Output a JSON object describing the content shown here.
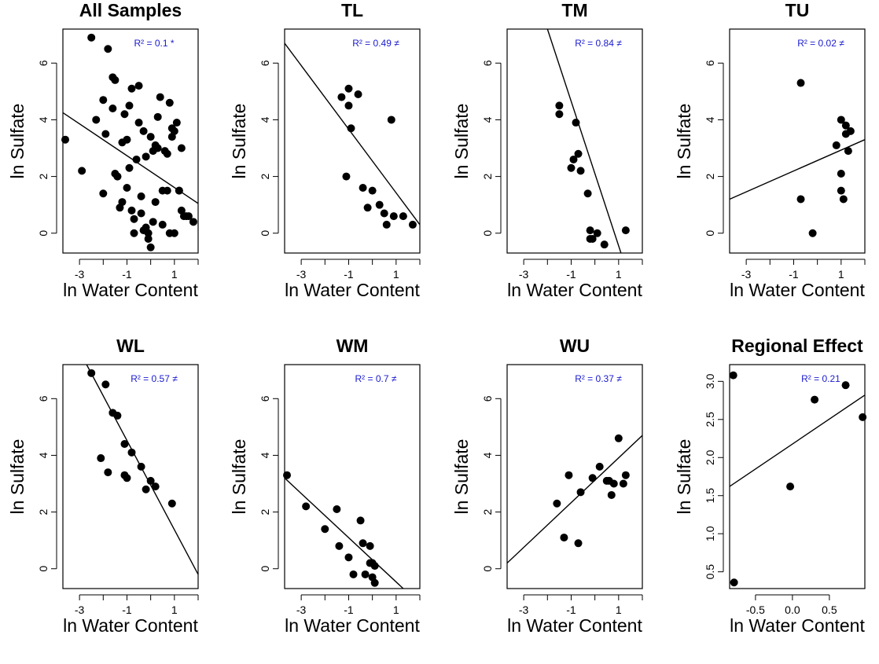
{
  "chart_data": [
    {
      "type": "scatter",
      "title": "All Samples",
      "xlabel": "ln Water Content",
      "ylabel": "ln Sulfate",
      "xlim": [
        -3.7,
        2.0
      ],
      "ylim": [
        -0.7,
        7.2
      ],
      "xticks": [
        -3,
        -2,
        -1,
        0,
        1,
        2
      ],
      "xtick_labels": [
        "-3",
        "",
        "-1",
        "",
        "1",
        ""
      ],
      "yticks": [
        0,
        2,
        4,
        6
      ],
      "ytick_labels": [
        "0",
        "2",
        "4",
        "6"
      ],
      "annotation": "R² = 0.1 *",
      "fit_line": {
        "x": [
          -3.7,
          2.0
        ],
        "y": [
          4.25,
          1.05
        ]
      },
      "x": [
        -3.6,
        -2.9,
        -2.5,
        -2.3,
        -2.0,
        -1.9,
        -1.8,
        -1.6,
        -1.5,
        -1.4,
        -1.3,
        -1.2,
        -1.1,
        -1.0,
        -0.9,
        -0.8,
        -0.7,
        -0.6,
        -0.5,
        -0.4,
        -0.3,
        -0.2,
        -0.1,
        0.0,
        0.1,
        0.2,
        0.3,
        0.4,
        0.5,
        0.6,
        0.7,
        0.8,
        0.9,
        1.0,
        1.1,
        1.2,
        1.3,
        1.4,
        1.5,
        -2.0,
        -1.6,
        -1.5,
        -1.4,
        -1.2,
        -1.0,
        -0.9,
        -0.8,
        -0.7,
        -0.5,
        -0.4,
        -0.3,
        -0.2,
        -0.1,
        0.0,
        0.1,
        0.2,
        0.3,
        0.5,
        0.7,
        0.8,
        0.9,
        1.0,
        1.2,
        1.3,
        1.6,
        1.8
      ],
      "y": [
        3.3,
        2.2,
        6.9,
        4.0,
        1.4,
        3.5,
        6.5,
        5.5,
        2.1,
        2.0,
        0.9,
        1.1,
        4.2,
        3.3,
        2.3,
        0.8,
        0.0,
        2.6,
        3.9,
        0.7,
        3.6,
        0.2,
        0.0,
        -0.5,
        2.9,
        1.1,
        3.0,
        4.8,
        0.3,
        2.9,
        1.5,
        4.6,
        3.7,
        0.0,
        3.9,
        1.5,
        3.0,
        0.6,
        0.6,
        4.7,
        4.4,
        5.4,
        2.0,
        3.2,
        1.6,
        4.5,
        5.1,
        0.5,
        5.2,
        1.3,
        0.1,
        2.7,
        -0.2,
        3.4,
        0.4,
        3.1,
        4.1,
        1.5,
        2.8,
        0.0,
        3.4,
        3.6,
        1.5,
        0.8,
        0.6,
        0.4
      ]
    },
    {
      "type": "scatter",
      "title": "TL",
      "xlabel": "ln Water Content",
      "ylabel": "ln Sulfate",
      "xlim": [
        -3.7,
        2.0
      ],
      "ylim": [
        -0.7,
        7.2
      ],
      "xticks": [
        -3,
        -2,
        -1,
        0,
        1,
        2
      ],
      "xtick_labels": [
        "-3",
        "",
        "-1",
        "",
        "1",
        ""
      ],
      "yticks": [
        0,
        2,
        4,
        6
      ],
      "ytick_labels": [
        "0",
        "2",
        "4",
        "6"
      ],
      "annotation": "R² = 0.49 ≠",
      "fit_line": {
        "x": [
          -3.7,
          2.0
        ],
        "y": [
          6.7,
          0.3
        ]
      },
      "x": [
        -1.3,
        -1.1,
        -1.0,
        -1.0,
        -0.9,
        -0.6,
        -0.4,
        -0.2,
        0.0,
        0.3,
        0.5,
        0.6,
        0.8,
        0.9,
        1.3,
        1.7
      ],
      "y": [
        4.8,
        2.0,
        5.1,
        4.5,
        3.7,
        4.9,
        1.6,
        0.9,
        1.5,
        1.0,
        0.7,
        0.3,
        4.0,
        0.6,
        0.6,
        0.3
      ]
    },
    {
      "type": "scatter",
      "title": "TM",
      "xlabel": "ln Water Content",
      "ylabel": "ln Sulfate",
      "xlim": [
        -3.7,
        2.0
      ],
      "ylim": [
        -0.7,
        7.2
      ],
      "xticks": [
        -3,
        -2,
        -1,
        0,
        1,
        2
      ],
      "xtick_labels": [
        "-3",
        "",
        "-1",
        "",
        "1",
        ""
      ],
      "yticks": [
        0,
        2,
        4,
        6
      ],
      "ytick_labels": [
        "0",
        "2",
        "4",
        "6"
      ],
      "annotation": "R² = 0.84 ≠",
      "fit_line": {
        "x": [
          -2.0,
          1.1
        ],
        "y": [
          7.2,
          -0.7
        ]
      },
      "x": [
        -1.5,
        -1.5,
        -1.0,
        -0.9,
        -0.8,
        -0.7,
        -0.6,
        -0.3,
        -0.2,
        -0.2,
        -0.1,
        0.1,
        0.4,
        1.3
      ],
      "y": [
        4.5,
        4.2,
        2.3,
        2.6,
        3.9,
        2.8,
        2.2,
        1.4,
        0.1,
        -0.2,
        -0.2,
        0.0,
        -0.4,
        0.1
      ]
    },
    {
      "type": "scatter",
      "title": "TU",
      "xlabel": "ln Water Content",
      "ylabel": "ln Sulfate",
      "xlim": [
        -3.7,
        2.0
      ],
      "ylim": [
        -0.7,
        7.2
      ],
      "xticks": [
        -3,
        -2,
        -1,
        0,
        1,
        2
      ],
      "xtick_labels": [
        "-3",
        "",
        "-1",
        "",
        "1",
        ""
      ],
      "yticks": [
        0,
        2,
        4,
        6
      ],
      "ytick_labels": [
        "0",
        "2",
        "4",
        "6"
      ],
      "annotation": "R² = 0.02 ≠",
      "fit_line": {
        "x": [
          -3.7,
          2.0
        ],
        "y": [
          1.2,
          3.3
        ]
      },
      "x": [
        -0.7,
        -0.7,
        -0.2,
        0.8,
        1.0,
        1.0,
        1.0,
        1.1,
        1.2,
        1.2,
        1.3,
        1.4
      ],
      "y": [
        5.3,
        1.2,
        0.0,
        3.1,
        4.0,
        2.1,
        1.5,
        1.2,
        3.5,
        3.8,
        2.9,
        3.6
      ]
    },
    {
      "type": "scatter",
      "title": "WL",
      "xlabel": "ln Water Content",
      "ylabel": "ln Sulfate",
      "xlim": [
        -3.7,
        2.0
      ],
      "ylim": [
        -0.7,
        7.2
      ],
      "xticks": [
        -3,
        -2,
        -1,
        0,
        1,
        2
      ],
      "xtick_labels": [
        "-3",
        "",
        "-1",
        "",
        "1",
        ""
      ],
      "yticks": [
        0,
        2,
        4,
        6
      ],
      "ytick_labels": [
        "0",
        "2",
        "4",
        "6"
      ],
      "annotation": "R² = 0.57 ≠",
      "fit_line": {
        "x": [
          -2.7,
          2.0
        ],
        "y": [
          7.2,
          -0.2
        ]
      },
      "x": [
        -2.5,
        -2.1,
        -1.9,
        -1.8,
        -1.6,
        -1.4,
        -1.1,
        -1.1,
        -1.0,
        -0.8,
        -0.4,
        -0.2,
        0.0,
        0.2,
        0.9
      ],
      "y": [
        6.9,
        3.9,
        6.5,
        3.4,
        5.5,
        5.4,
        4.4,
        3.3,
        3.2,
        4.1,
        3.6,
        2.8,
        3.1,
        2.9,
        2.3
      ]
    },
    {
      "type": "scatter",
      "title": "WM",
      "xlabel": "ln Water Content",
      "ylabel": "ln Sulfate",
      "xlim": [
        -3.7,
        2.0
      ],
      "ylim": [
        -0.7,
        7.2
      ],
      "xticks": [
        -3,
        -2,
        -1,
        0,
        1,
        2
      ],
      "xtick_labels": [
        "-3",
        "",
        "-1",
        "",
        "1",
        ""
      ],
      "yticks": [
        0,
        2,
        4,
        6
      ],
      "ytick_labels": [
        "0",
        "2",
        "4",
        "6"
      ],
      "annotation": "R² = 0.7 ≠",
      "fit_line": {
        "x": [
          -3.7,
          1.3
        ],
        "y": [
          3.2,
          -0.7
        ]
      },
      "x": [
        -3.6,
        -2.8,
        -2.0,
        -1.5,
        -1.4,
        -1.0,
        -0.8,
        -0.5,
        -0.4,
        -0.3,
        -0.1,
        -0.1,
        0.0,
        0.0,
        0.1,
        0.1
      ],
      "y": [
        3.3,
        2.2,
        1.4,
        2.1,
        0.8,
        0.4,
        -0.2,
        1.7,
        0.9,
        -0.2,
        0.8,
        0.2,
        0.2,
        -0.3,
        0.1,
        -0.5
      ]
    },
    {
      "type": "scatter",
      "title": "WU",
      "xlabel": "ln Water Content",
      "ylabel": "ln Sulfate",
      "xlim": [
        -3.7,
        2.0
      ],
      "ylim": [
        -0.7,
        7.2
      ],
      "xticks": [
        -3,
        -2,
        -1,
        0,
        1,
        2
      ],
      "xtick_labels": [
        "-3",
        "",
        "-1",
        "",
        "1",
        ""
      ],
      "yticks": [
        0,
        2,
        4,
        6
      ],
      "ytick_labels": [
        "0",
        "2",
        "4",
        "6"
      ],
      "annotation": "R² = 0.37 ≠",
      "fit_line": {
        "x": [
          -3.7,
          2.0
        ],
        "y": [
          0.2,
          4.7
        ]
      },
      "x": [
        -1.6,
        -1.3,
        -1.1,
        -0.7,
        -0.6,
        -0.1,
        0.2,
        0.5,
        0.6,
        0.7,
        0.8,
        1.0,
        1.2,
        1.3
      ],
      "y": [
        2.3,
        1.1,
        3.3,
        0.9,
        2.7,
        3.2,
        3.6,
        3.1,
        3.1,
        2.6,
        3.0,
        4.6,
        3.0,
        3.3
      ]
    },
    {
      "type": "scatter",
      "title": "Regional Effect",
      "xlabel": "ln Water Content",
      "ylabel": "ln Sulfate",
      "xlim": [
        -0.85,
        0.98
      ],
      "ylim": [
        0.28,
        3.22
      ],
      "xticks": [
        -0.5,
        0.0,
        0.5
      ],
      "xtick_labels": [
        "-0.5",
        "0.0",
        "0.5"
      ],
      "yticks": [
        0.5,
        1.0,
        1.5,
        2.0,
        2.5,
        3.0
      ],
      "ytick_labels": [
        "0.5",
        "1.0",
        "1.5",
        "2.0",
        "2.5",
        "3.0"
      ],
      "annotation": "R² = 0.21",
      "fit_line": {
        "x": [
          -0.85,
          0.98
        ],
        "y": [
          1.62,
          2.82
        ]
      },
      "x": [
        -0.8,
        -0.79,
        -0.03,
        0.3,
        0.72,
        0.95
      ],
      "y": [
        3.08,
        0.36,
        1.62,
        2.76,
        2.95,
        2.53
      ]
    }
  ]
}
